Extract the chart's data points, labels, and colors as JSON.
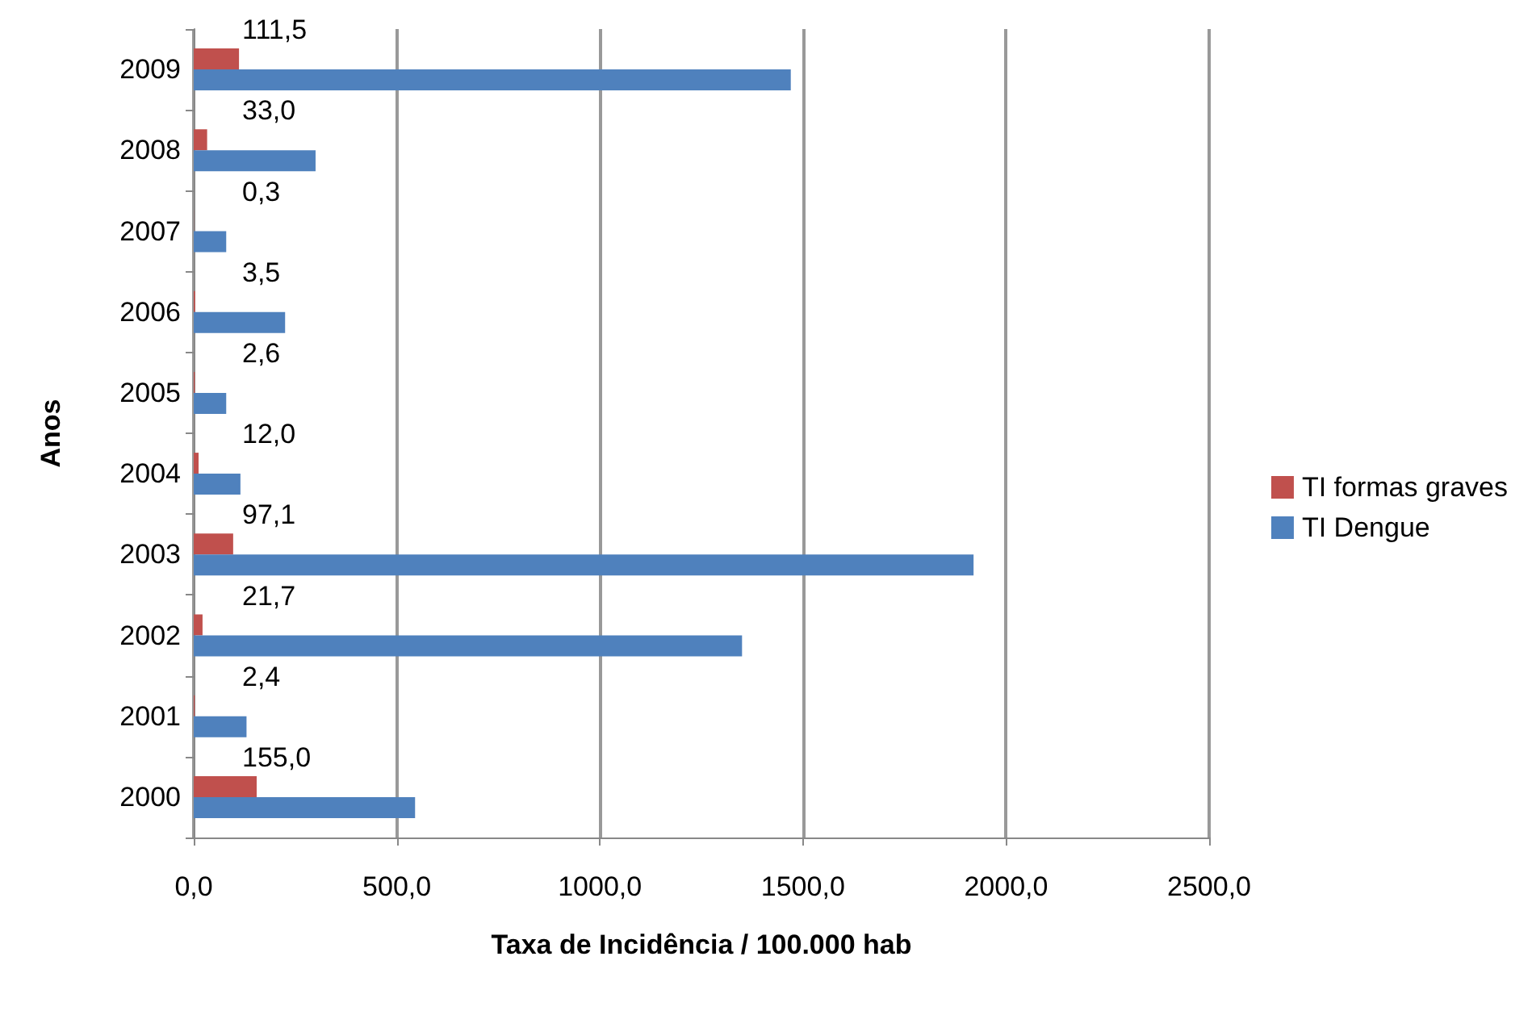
{
  "chart_data": {
    "type": "bar",
    "orientation": "horizontal",
    "xlabel": "Taxa de Incidência / 100.000 hab",
    "ylabel": "Anos",
    "categories": [
      "2009",
      "2008",
      "2007",
      "2006",
      "2005",
      "2004",
      "2003",
      "2002",
      "2001",
      "2000"
    ],
    "series": [
      {
        "name": "TI formas graves",
        "color": "#c0504d",
        "values": [
          111.5,
          33.0,
          0.3,
          3.5,
          2.6,
          12.0,
          97.1,
          21.7,
          2.4,
          155.0
        ],
        "value_labels": [
          "111,5",
          "33,0",
          "0,3",
          "3,5",
          "2,6",
          "12,0",
          "97,1",
          "21,7",
          "2,4",
          "155,0"
        ]
      },
      {
        "name": "TI Dengue",
        "color": "#4f81bd",
        "values": [
          1470,
          300,
          80,
          225,
          80,
          115,
          1920,
          1350,
          130,
          545
        ]
      }
    ],
    "xlim": [
      0,
      2500
    ],
    "xticks": [
      {
        "value": 0,
        "label": "0,0"
      },
      {
        "value": 500,
        "label": "500,0"
      },
      {
        "value": 1000,
        "label": "1000,0"
      },
      {
        "value": 1500,
        "label": "1500,0"
      },
      {
        "value": 2000,
        "label": "2000,0"
      },
      {
        "value": 2500,
        "label": "2500,0"
      }
    ],
    "grid": "x",
    "legend": "right"
  }
}
